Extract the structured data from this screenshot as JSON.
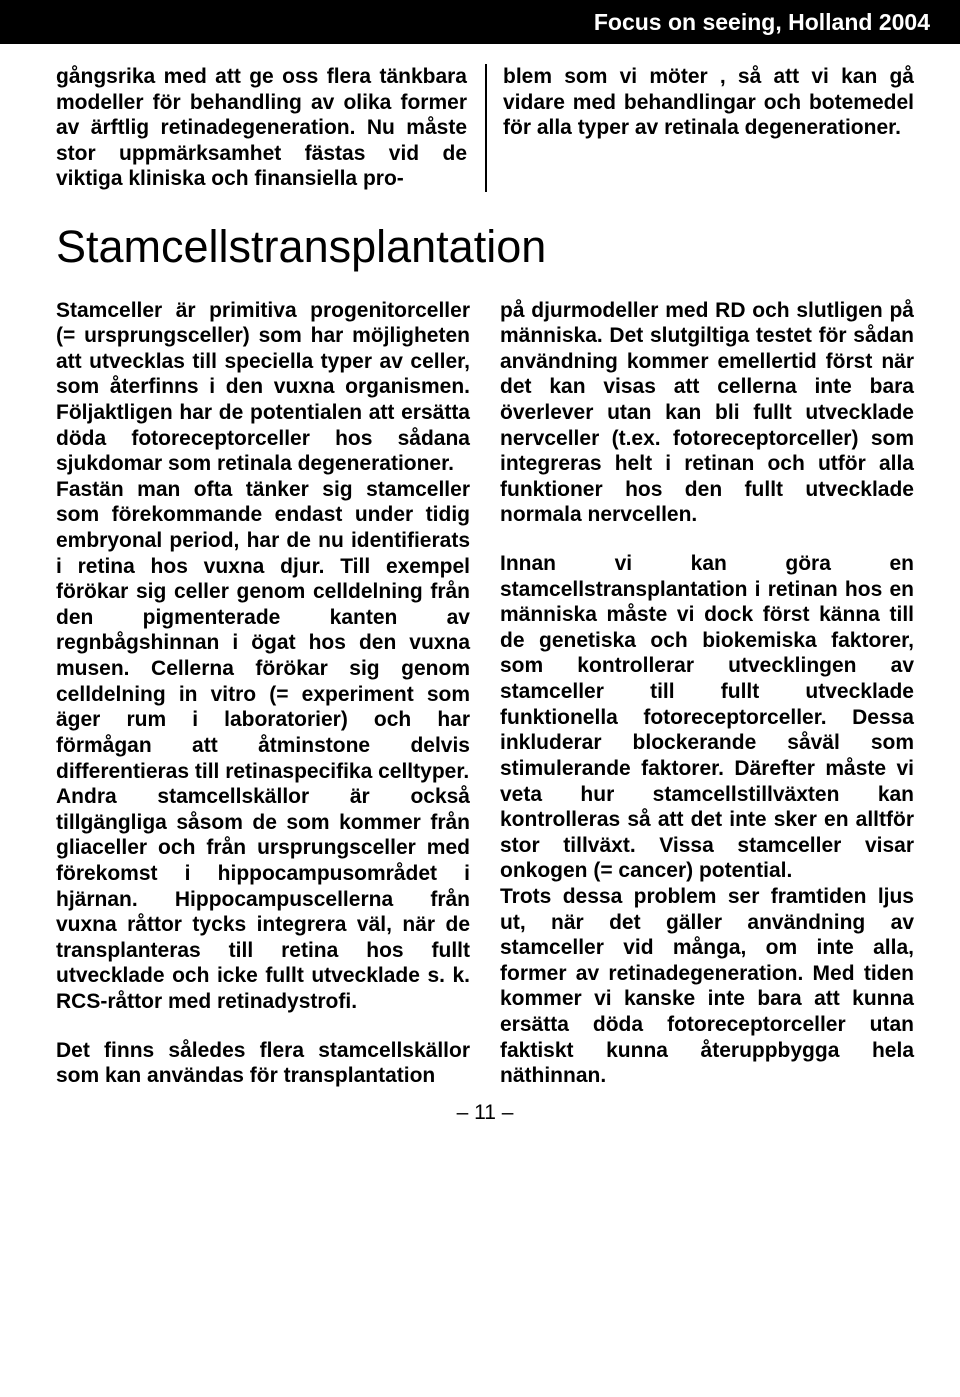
{
  "header": {
    "title": "Focus on seeing, Holland 2004"
  },
  "intro": {
    "left": "gångsrika med att ge oss flera tänkbara modeller för behandling av olika former av ärftlig retinadegeneration. Nu måste stor uppmärksamhet fästas vid de viktiga kliniska och finansiella pro-",
    "right": "blem som vi möter , så att vi kan gå vidare med behandlingar och botemedel för alla typer av retinala degenerationer."
  },
  "section": {
    "title": "Stamcellstransplantation"
  },
  "body": {
    "left": {
      "p1": "Stamceller är primitiva progenitorceller (= ursprungsceller) som har möjligheten att utvecklas till speciella typer av celler, som återfinns i den vuxna organismen. Följaktligen har de potentialen att ersätta döda fotoreceptorceller hos sådana sjukdomar som retinala degenerationer.",
      "p2": "Fastän man ofta tänker sig stamceller som förekommande endast under tidig embryonal period, har de nu identifierats i retina hos vuxna djur. Till exempel förökar sig celler genom celldelning från den pigmenterade kanten av regnbågshinnan i ögat hos den vuxna musen. Cellerna förökar sig genom celldelning in vitro (= experiment som äger rum i laboratorier) och har förmågan att åtminstone delvis differentieras till retinaspecifika celltyper.",
      "p3": "Andra stamcellskällor är också tillgängliga såsom de som kommer från gliaceller och från ursprungsceller med förekomst i hippocampusområdet i hjärnan. Hippocampuscellerna från vuxna råttor tycks integrera väl, när de transplanteras till retina hos fullt utvecklade och icke fullt utvecklade s. k. RCS-råttor med retinadystrofi.",
      "p4": "Det finns således flera stamcellskällor som kan användas för transplantation"
    },
    "right": {
      "p1": "på djurmodeller med RD och slutligen på människa. Det slutgiltiga testet för sådan användning kommer emellertid först när det kan visas att cellerna inte bara överlever utan kan bli fullt utvecklade nervceller (t.ex. fotoreceptorceller) som integreras helt i retinan och utför alla funktioner hos den fullt utvecklade normala nervcellen.",
      "p2": "Innan vi kan göra en stamcellstransplantation i retinan hos en människa måste vi dock först känna till de genetiska och biokemiska faktorer, som kontrollerar utvecklingen av stamceller till fullt utvecklade funktionella fotoreceptorceller. Dessa inkluderar blockerande såväl som stimulerande faktorer. Därefter måste vi veta hur stamcellstillväxten kan kontrolleras så att det inte sker en alltför stor tillväxt. Vissa stamceller visar onkogen (= cancer) potential.",
      "p3": "Trots dessa problem ser framtiden ljus ut, när det gäller användning av stamceller vid många, om inte alla, former av retinadegeneration. Med tiden kommer vi kanske inte bara att kunna ersätta döda fotoreceptorceller utan faktiskt kunna återuppbygga hela näthinnan."
    }
  },
  "footer": {
    "page": "– 11 –"
  }
}
